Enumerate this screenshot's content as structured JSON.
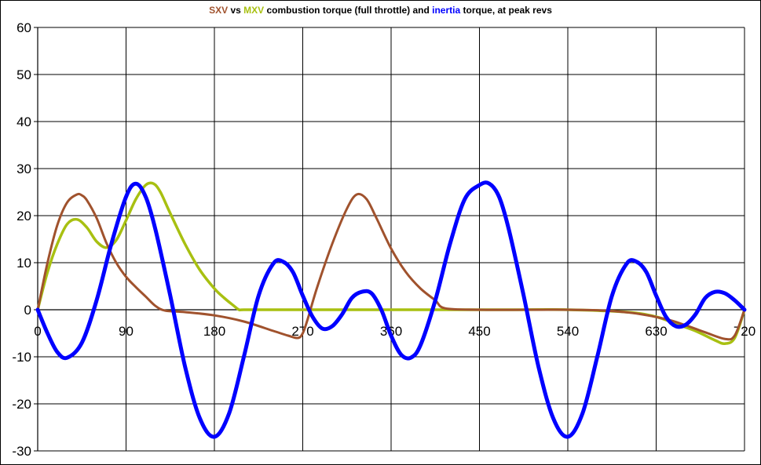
{
  "chart_data": {
    "type": "line",
    "title_parts": [
      {
        "text": "SXV",
        "color": "#a0522d"
      },
      {
        "text": " vs ",
        "color": "#000000"
      },
      {
        "text": "MXV",
        "color": "#a8c011"
      },
      {
        "text": " combustion torque (full throttle) and ",
        "color": "#000000"
      },
      {
        "text": "inertia",
        "color": "#0000ff"
      },
      {
        "text": " torque, at peak revs",
        "color": "#000000"
      }
    ],
    "xlim": [
      0,
      720
    ],
    "ylim": [
      -30,
      60
    ],
    "x_ticks": [
      "0",
      "90",
      "180",
      "270",
      "360",
      "450",
      "540",
      "630",
      "720"
    ],
    "y_ticks": [
      "60",
      "50",
      "40",
      "30",
      "20",
      "10",
      "0",
      "-10",
      "-20",
      "-30"
    ],
    "grid": true,
    "series": [
      {
        "color": "#a8c011",
        "x": [
          0,
          10,
          20,
          30,
          40,
          50,
          60,
          70,
          80,
          90,
          100,
          110,
          118,
          125,
          135,
          150,
          165,
          180,
          190,
          200,
          205,
          210,
          240,
          270,
          300,
          360,
          420,
          480,
          540,
          600,
          630,
          650,
          670,
          690,
          700,
          710,
          720
        ],
        "y": [
          0,
          8,
          14,
          18.2,
          19.2,
          17.5,
          14.5,
          13.2,
          14.8,
          19,
          23.5,
          26.5,
          26.8,
          25,
          20.5,
          14,
          8.5,
          4.5,
          2.5,
          0.8,
          0,
          0,
          0,
          0,
          0,
          0,
          0,
          0,
          0,
          -0.5,
          -1.5,
          -3,
          -4.5,
          -6.5,
          -7.2,
          -6,
          0
        ]
      },
      {
        "color": "#a0522d",
        "x": [
          0,
          10,
          20,
          30,
          40,
          45,
          50,
          60,
          70,
          80,
          90,
          100,
          110,
          120,
          130,
          150,
          180,
          210,
          240,
          255,
          265,
          270,
          275,
          285,
          300,
          315,
          325,
          335,
          345,
          360,
          375,
          390,
          405,
          415,
          450,
          500,
          540,
          580,
          610,
          640,
          660,
          680,
          700,
          710,
          720
        ],
        "y": [
          0,
          10,
          18,
          22.8,
          24.5,
          24.3,
          23.3,
          19.5,
          14.2,
          10,
          7,
          4.8,
          2.8,
          0.8,
          -0.2,
          -0.5,
          -1.2,
          -2.5,
          -4.5,
          -5.5,
          -6,
          -5,
          -2,
          5,
          14,
          21.5,
          24.5,
          23.5,
          19.5,
          13,
          8,
          4.5,
          2,
          0.3,
          0,
          0,
          0,
          -0.2,
          -0.8,
          -2,
          -3.3,
          -4.8,
          -6.2,
          -5.5,
          0
        ]
      },
      {
        "color": "#0000ff",
        "x": [
          0,
          10,
          20,
          30,
          45,
          60,
          75,
          90,
          100,
          110,
          120,
          135,
          150,
          165,
          180,
          195,
          210,
          225,
          240,
          250,
          260,
          270,
          280,
          290,
          300,
          310,
          320,
          330,
          340,
          350,
          360,
          370,
          380,
          390,
          405,
          420,
          435,
          450,
          460,
          470,
          480,
          495,
          510,
          525,
          540,
          555,
          570,
          585,
          600,
          610,
          620,
          630,
          640,
          650,
          660,
          670,
          680,
          690,
          700,
          710,
          720
        ],
        "y": [
          0,
          -5,
          -9,
          -10.2,
          -7,
          2,
          14,
          24,
          26.8,
          24,
          17,
          3,
          -12,
          -23,
          -27,
          -22,
          -10,
          3,
          9.8,
          10.2,
          8,
          3,
          -1.5,
          -4,
          -3.5,
          -1,
          2.5,
          3.8,
          3.5,
          0,
          -5.5,
          -9.5,
          -10.2,
          -7.5,
          2,
          14,
          23.5,
          26.5,
          26.8,
          24,
          17,
          3,
          -12,
          -23,
          -27,
          -22,
          -10,
          3,
          9.8,
          10.2,
          8,
          3,
          -1.5,
          -3.5,
          -3.2,
          -1,
          2.5,
          3.8,
          3.5,
          2,
          0
        ]
      }
    ]
  }
}
